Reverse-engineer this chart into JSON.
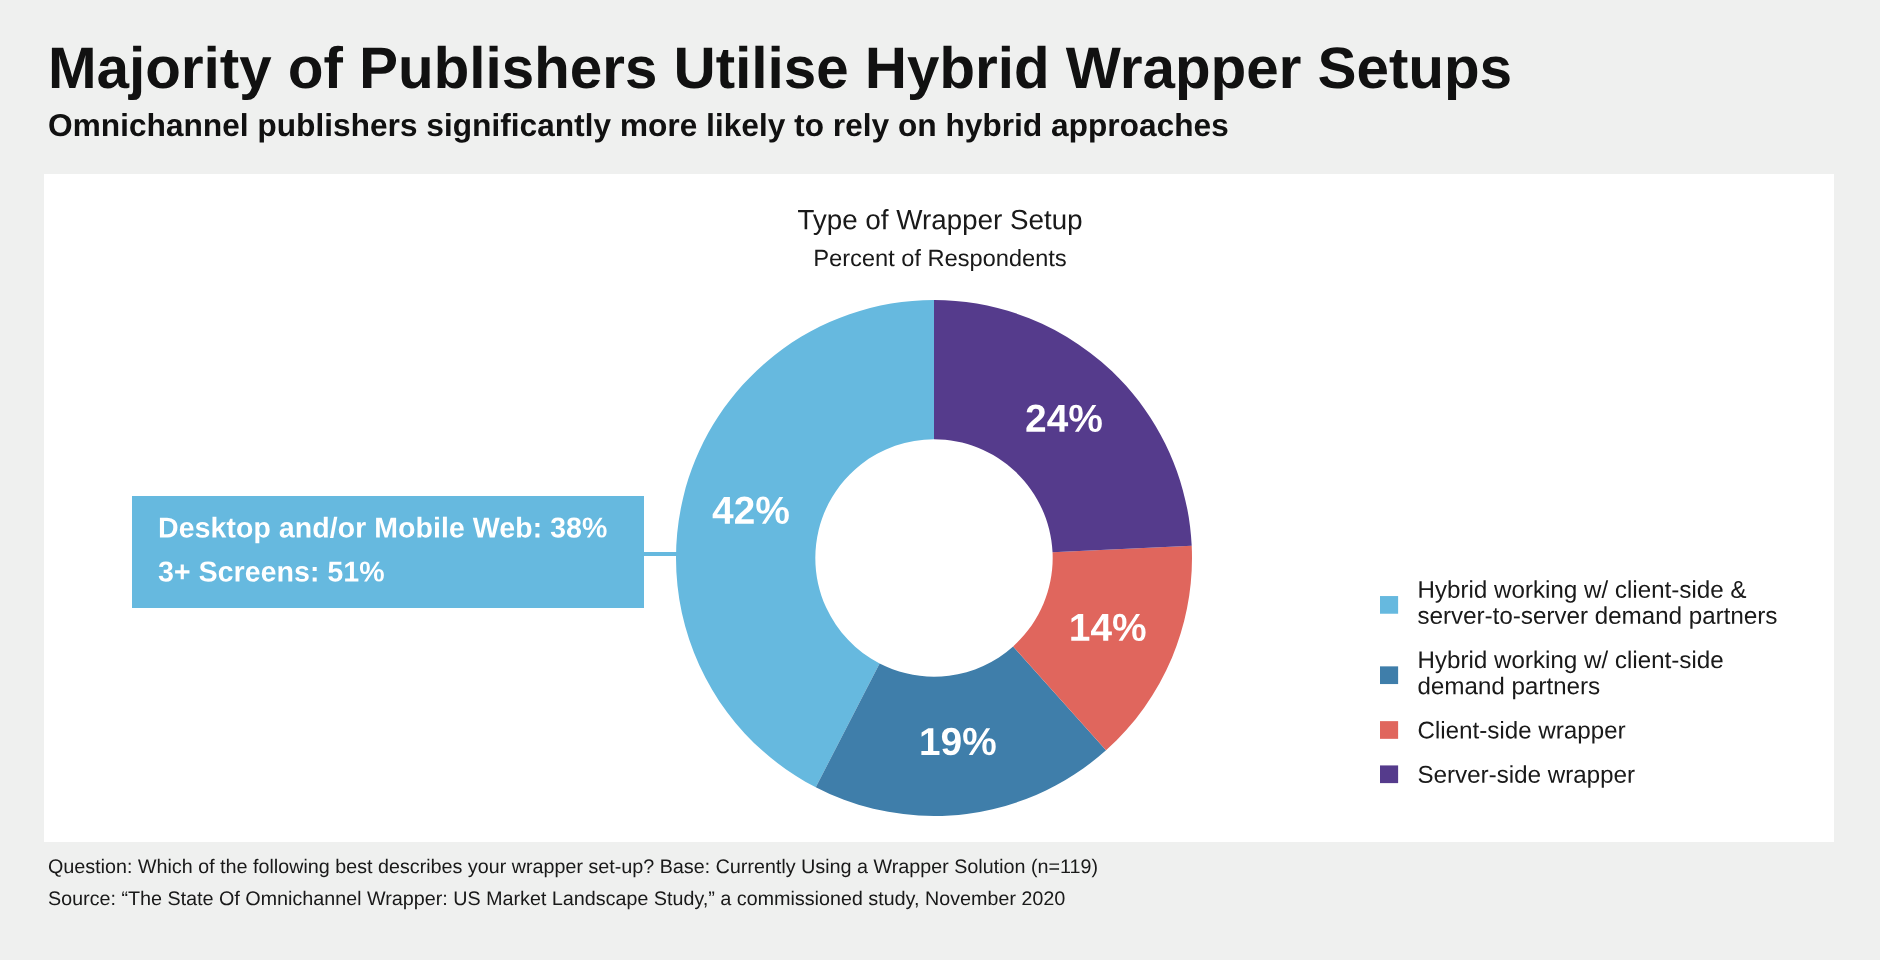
{
  "chart_data": {
    "type": "donut",
    "title": "Majority of Publishers Utilise Hybrid Wrapper Setups",
    "subtitle": "Omnichannel publishers significantly more likely to rely on hybrid approaches",
    "annotations": [
      "Type of Wrapper Setup",
      "Percent of Respondents",
      "Desktop and/or Mobile Web: 38%",
      "3+ Screens: 51%",
      "Question: Which of the following best describes your wrapper set-up? Base: Currently Using a Wrapper Solution (n=119)",
      "Source: “The State Of Omnichannel Wrapper: US Market Landscape Study,” a commissioned study, November 2020"
    ],
    "categories": [
      "Hybrid working w/ client-side & server-to-server demand partners",
      "Hybrid working w/ client-side demand partners",
      "Client-side wrapper",
      "Server-side wrapper"
    ],
    "values": [
      42,
      19,
      14,
      24
    ],
    "colors": [
      "#66b9df",
      "#3f7eaa",
      "#e0665d",
      "#553b8c"
    ],
    "value_labels": [
      "42%",
      "19%",
      "14%",
      "24%"
    ],
    "legend": "right"
  }
}
